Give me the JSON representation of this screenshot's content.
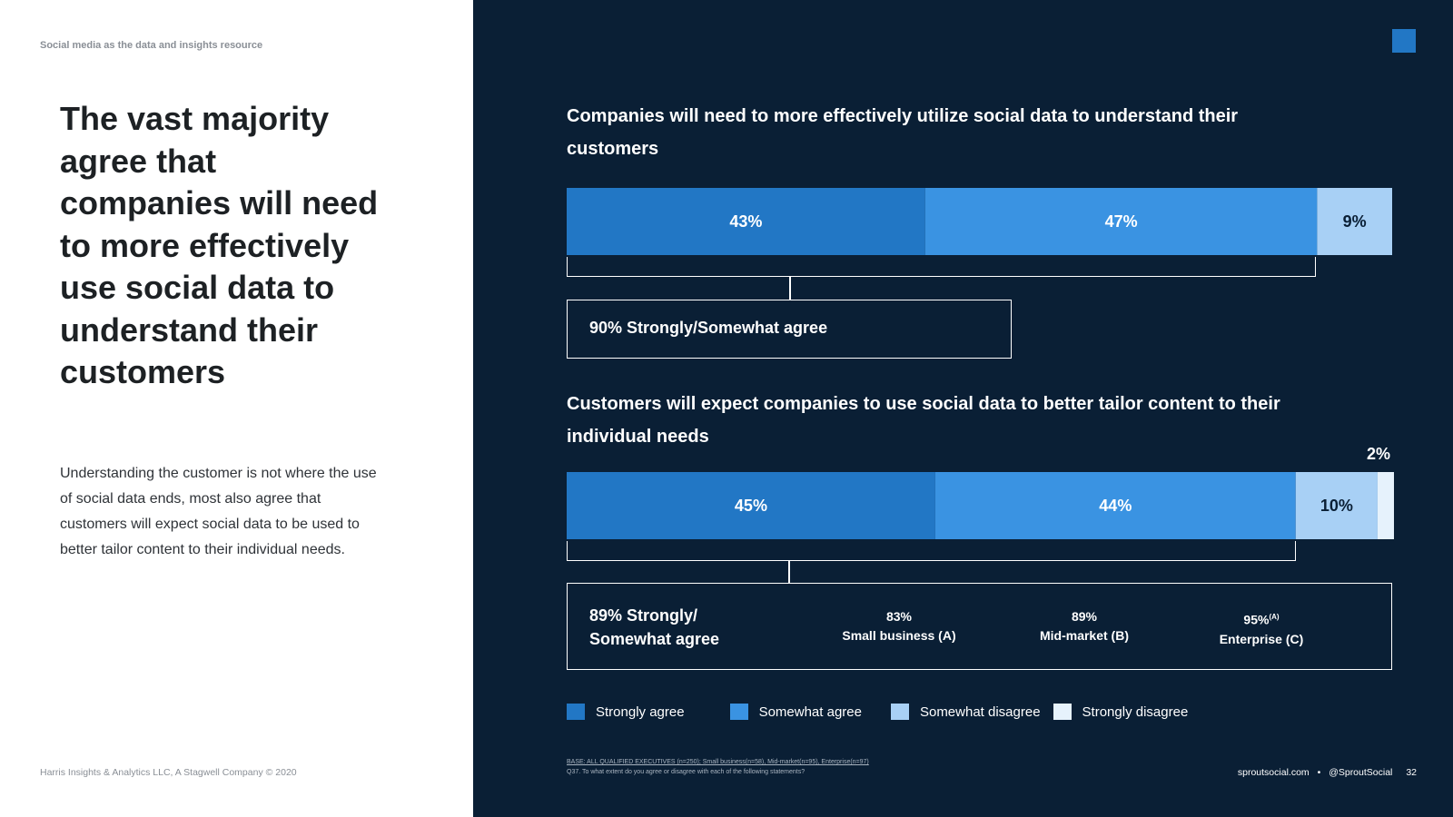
{
  "left_panel": {
    "section_label": "Social media as the data and insights resource",
    "headline": "The vast majority agree that companies will need to more effectively use social data to understand their customers",
    "body": "Understanding the customer is not where the use of social data ends, most also agree that customers will expect social data to be used to better tailor content to their individual needs.",
    "footer": "Harris Insights & Analytics LLC, A Stagwell Company © 2020"
  },
  "colors": {
    "strongly_agree": "#2277c5",
    "somewhat_agree": "#3a93e2",
    "somewhat_disagree": "#a8d0f5",
    "strongly_disagree": "#e6f2fc",
    "background_dark": "#0a1f35",
    "accent_square": "#2277c5"
  },
  "chart_data": [
    {
      "type": "bar",
      "orientation": "horizontal-stacked",
      "title": "Companies will need to more effectively utilize social data to understand their customers",
      "categories": [
        "Strongly agree",
        "Somewhat agree",
        "Somewhat disagree"
      ],
      "values": [
        43,
        47,
        9
      ],
      "labels": [
        "43%",
        "47%",
        "9%"
      ],
      "summary": "90% Strongly/Somewhat agree"
    },
    {
      "type": "bar",
      "orientation": "horizontal-stacked",
      "title": "Customers will expect companies to use social data to better tailor content to their individual needs",
      "categories": [
        "Strongly agree",
        "Somewhat agree",
        "Somewhat disagree",
        "Strongly disagree"
      ],
      "values": [
        45,
        44,
        10,
        2
      ],
      "labels": [
        "45%",
        "44%",
        "10%",
        "2%"
      ],
      "summary": "89% Strongly/ Somewhat agree",
      "segments": [
        {
          "value": "83%",
          "label": "Small business (A)",
          "sup": ""
        },
        {
          "value": "89%",
          "label": "Mid-market (B)",
          "sup": ""
        },
        {
          "value": "95%",
          "label": "Enterprise (C)",
          "sup": "(A)"
        }
      ]
    }
  ],
  "legend": [
    "Strongly agree",
    "Somewhat agree",
    "Somewhat disagree",
    "Strongly disagree"
  ],
  "base_note": {
    "line1": "BASE: ALL QUALIFIED EXECUTIVES (n=250); Small business(n=58), Mid-market(n=95), Enterprise(n=97)",
    "line2": "Q37. To what extent do you agree or disagree with each of the following statements?"
  },
  "footer_right": {
    "site": "sproutsocial.com",
    "separator": "•",
    "handle": "@SproutSocial",
    "page": "32"
  }
}
